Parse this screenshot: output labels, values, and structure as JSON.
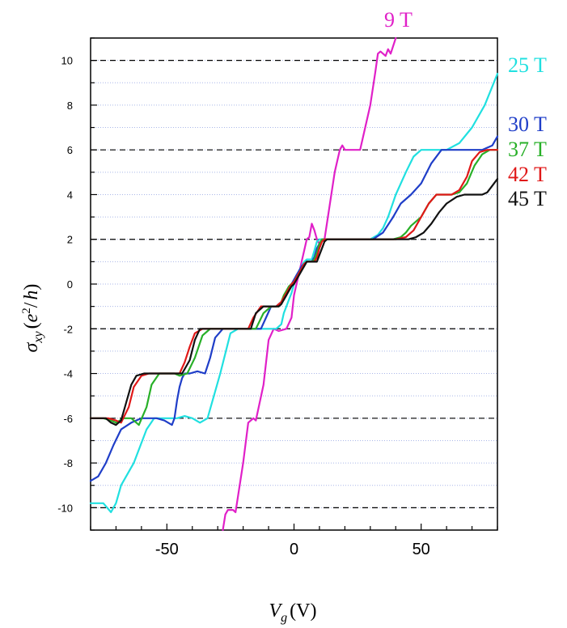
{
  "chart_data": {
    "type": "line",
    "title": "",
    "xlabel": {
      "symbol": "V",
      "subscript": "g",
      "unit": "(V)"
    },
    "ylabel": {
      "symbol": "σ",
      "subscript": "xy",
      "open": "(",
      "e": "e",
      "power": "2",
      "slash": "/",
      "h": "h",
      "close": ")"
    },
    "xlim": [
      -80,
      80
    ],
    "ylim": [
      -11,
      11
    ],
    "x_ticks": [
      -50,
      0,
      50
    ],
    "x_tick_labels": [
      "-50",
      "0",
      "50"
    ],
    "y_ticks": [
      -10,
      -8,
      -6,
      -4,
      -2,
      0,
      2,
      4,
      6,
      8,
      10
    ],
    "y_tick_labels": [
      "-10",
      "-8",
      "-6",
      "-4",
      "-2",
      "0",
      "2",
      "4",
      "6",
      "8",
      "10"
    ],
    "dashed_reference_lines_y": [
      -10,
      -6,
      -2,
      2,
      6,
      10
    ],
    "grid": "dotted horizontal lines at every integer",
    "series": [
      {
        "name": "9 T",
        "color": "#e020c8",
        "x": [
          -28,
          -27,
          -26,
          -24,
          -23,
          -20,
          -18,
          -16,
          -15,
          -12,
          -10,
          -8,
          -6,
          -3,
          -1,
          0,
          1,
          2,
          3,
          4,
          5,
          6,
          7,
          8,
          9,
          10,
          12,
          14,
          16,
          18,
          19,
          20,
          22,
          26,
          30,
          32,
          33,
          34,
          36,
          37,
          38,
          40
        ],
        "y": [
          -11,
          -10.3,
          -10.1,
          -10.1,
          -10.2,
          -8,
          -6.2,
          -6,
          -6.1,
          -4.5,
          -2.5,
          -2,
          -2.1,
          -2,
          -1.5,
          -0.5,
          0,
          0.5,
          1,
          1.5,
          2,
          2.1,
          2.7,
          2.4,
          2,
          1.8,
          2,
          3.5,
          5,
          6,
          6.2,
          6,
          6,
          6,
          8,
          9.5,
          10.3,
          10.4,
          10.2,
          10.5,
          10.3,
          11
        ]
      },
      {
        "name": "25 T",
        "color": "#20e0e0",
        "x": [
          -80,
          -75,
          -72,
          -70,
          -68,
          -63,
          -58,
          -55,
          -52,
          -49,
          -46,
          -43,
          -40,
          -37,
          -34,
          -29,
          -25,
          -22,
          -19,
          -16,
          -13,
          -11,
          -9,
          -7,
          -5,
          -4,
          -3,
          -2,
          -1,
          0,
          1,
          2,
          3,
          4,
          5,
          6,
          7,
          8,
          9,
          10,
          11,
          12,
          13,
          14,
          17,
          22,
          27,
          30,
          33,
          35,
          37,
          40,
          44,
          47,
          50,
          60,
          65,
          70,
          75,
          80
        ],
        "y": [
          -9.8,
          -9.8,
          -10.2,
          -9.8,
          -9,
          -8,
          -6.5,
          -6,
          -6,
          -6,
          -6,
          -5.9,
          -6,
          -6.2,
          -6,
          -4,
          -2.2,
          -2,
          -2,
          -2,
          -2,
          -2,
          -2,
          -2,
          -1.8,
          -1.3,
          -1,
          -0.7,
          -0.4,
          0,
          0.3,
          0.6,
          0.8,
          1,
          1.1,
          1.1,
          1.1,
          1.5,
          1.9,
          2,
          2,
          2,
          2,
          2,
          2,
          2,
          2,
          2,
          2.2,
          2.5,
          3,
          4,
          5,
          5.7,
          6,
          6,
          6.3,
          7,
          8,
          9.4
        ]
      },
      {
        "name": "30 T",
        "color": "#1f3ec8",
        "x": [
          -80,
          -77,
          -74,
          -71,
          -68,
          -64,
          -60,
          -57,
          -54,
          -51,
          -48,
          -47,
          -46,
          -45,
          -44,
          -43,
          -41,
          -38,
          -35,
          -33,
          -31,
          -28,
          -25,
          -22,
          -19,
          -16,
          -13,
          -11,
          -9,
          -7,
          -5,
          -4,
          -3,
          -2,
          -1,
          0,
          1,
          2,
          3,
          4,
          5,
          6,
          7,
          8,
          9,
          10,
          11,
          12,
          13,
          14,
          17,
          22,
          27,
          31,
          35,
          39,
          42,
          46,
          50,
          54,
          58,
          62,
          66,
          70,
          74,
          78,
          80
        ],
        "y": [
          -8.8,
          -8.6,
          -8,
          -7.2,
          -6.5,
          -6.2,
          -6,
          -6,
          -6,
          -6.1,
          -6.3,
          -6,
          -5.2,
          -4.6,
          -4.2,
          -4,
          -4,
          -3.9,
          -4,
          -3.3,
          -2.4,
          -2,
          -2,
          -2,
          -2,
          -2,
          -2,
          -1.5,
          -1,
          -1,
          -0.8,
          -0.7,
          -0.5,
          -0.2,
          0,
          0.2,
          0.4,
          0.6,
          0.8,
          0.9,
          1,
          1,
          1,
          1.2,
          1.6,
          1.8,
          2,
          2,
          2,
          2,
          2,
          2,
          2,
          2,
          2.3,
          3,
          3.6,
          4,
          4.5,
          5.4,
          6,
          6,
          6,
          6,
          6,
          6.2,
          6.6
        ]
      },
      {
        "name": "37 T",
        "color": "#28b028",
        "x": [
          -80,
          -75,
          -72,
          -70,
          -67,
          -64,
          -61,
          -58,
          -56,
          -53,
          -50,
          -47,
          -45,
          -42,
          -39,
          -36,
          -33,
          -30,
          -27,
          -24,
          -21,
          -18,
          -15,
          -12,
          -9,
          -6,
          -5,
          -4,
          -3,
          -2,
          -1,
          0,
          1,
          2,
          3,
          4,
          5,
          6,
          7,
          8,
          9,
          10,
          11,
          12,
          13,
          14,
          17,
          21,
          25,
          30,
          35,
          39,
          42,
          44,
          46,
          50,
          53,
          56,
          59,
          62,
          65,
          68,
          71,
          74,
          77,
          80
        ],
        "y": [
          -6,
          -6,
          -6.1,
          -6.2,
          -6,
          -6,
          -6.3,
          -5.5,
          -4.5,
          -4,
          -4,
          -4,
          -4.1,
          -4,
          -3.3,
          -2.3,
          -2,
          -2,
          -2,
          -2,
          -2,
          -2,
          -2,
          -1.3,
          -1,
          -1,
          -0.8,
          -0.5,
          -0.3,
          -0.1,
          0,
          0.1,
          0.3,
          0.5,
          0.7,
          0.9,
          1,
          1,
          1,
          1.1,
          1.4,
          1.8,
          2,
          2,
          2,
          2,
          2,
          2,
          2,
          2,
          2,
          2,
          2.1,
          2.3,
          2.6,
          3,
          3.6,
          4,
          4,
          4,
          4.1,
          4.5,
          5.3,
          5.8,
          6,
          6
        ]
      },
      {
        "name": "42 T",
        "color": "#e01818",
        "x": [
          -80,
          -76,
          -73,
          -70,
          -68,
          -65,
          -63,
          -60,
          -57,
          -54,
          -51,
          -48,
          -45,
          -43,
          -41,
          -39,
          -36,
          -33,
          -30,
          -27,
          -24,
          -21,
          -18,
          -16,
          -13,
          -10,
          -7,
          -5,
          -4,
          -3,
          -2,
          -1,
          0,
          1,
          2,
          3,
          4,
          5,
          6,
          7,
          8,
          9,
          10,
          11,
          12,
          13,
          14,
          17,
          21,
          25,
          30,
          35,
          40,
          44,
          47,
          50,
          53,
          56,
          59,
          62,
          65,
          68,
          70,
          73,
          76,
          80
        ],
        "y": [
          -6,
          -6,
          -6,
          -6.1,
          -6.2,
          -5.5,
          -4.6,
          -4.1,
          -4,
          -4,
          -4,
          -4,
          -4,
          -3.5,
          -2.8,
          -2.2,
          -2,
          -2,
          -2,
          -2,
          -2,
          -2,
          -2,
          -1.5,
          -1,
          -1,
          -1,
          -0.8,
          -0.6,
          -0.4,
          -0.2,
          0,
          0.1,
          0.3,
          0.5,
          0.7,
          0.9,
          1,
          1,
          1,
          1,
          1.2,
          1.6,
          1.9,
          2,
          2,
          2,
          2,
          2,
          2,
          2,
          2,
          2,
          2.1,
          2.4,
          3,
          3.6,
          4,
          4,
          4,
          4.2,
          4.8,
          5.5,
          5.9,
          6,
          6
        ]
      },
      {
        "name": "45 T",
        "color": "#111111",
        "x": [
          -80,
          -77,
          -74,
          -72,
          -70,
          -68,
          -66,
          -64,
          -62,
          -59,
          -56,
          -53,
          -50,
          -47,
          -44,
          -41,
          -39,
          -37,
          -34,
          -31,
          -28,
          -25,
          -22,
          -19,
          -17,
          -15,
          -12,
          -9,
          -6,
          -5,
          -4,
          -3,
          -2,
          -1,
          0,
          1,
          2,
          3,
          4,
          5,
          6,
          7,
          8,
          9,
          10,
          11,
          12,
          13,
          14,
          17,
          21,
          25,
          30,
          35,
          40,
          45,
          48,
          51,
          54,
          57,
          60,
          64,
          67,
          70,
          72,
          74,
          76,
          78,
          80
        ],
        "y": [
          -6,
          -6,
          -6,
          -6.2,
          -6.3,
          -6.1,
          -5.3,
          -4.5,
          -4.1,
          -4,
          -4,
          -4,
          -4,
          -4,
          -4,
          -3.4,
          -2.5,
          -2,
          -2,
          -2,
          -2,
          -2,
          -2,
          -2,
          -2,
          -1.3,
          -1,
          -1,
          -1,
          -0.9,
          -0.7,
          -0.5,
          -0.3,
          -0.1,
          0,
          0.2,
          0.4,
          0.6,
          0.8,
          1,
          1,
          1,
          1,
          1,
          1.3,
          1.6,
          1.9,
          2,
          2,
          2,
          2,
          2,
          2,
          2,
          2,
          2,
          2.1,
          2.3,
          2.7,
          3.2,
          3.6,
          3.9,
          4,
          4,
          4,
          4,
          4.1,
          4.4,
          4.7
        ]
      }
    ]
  }
}
